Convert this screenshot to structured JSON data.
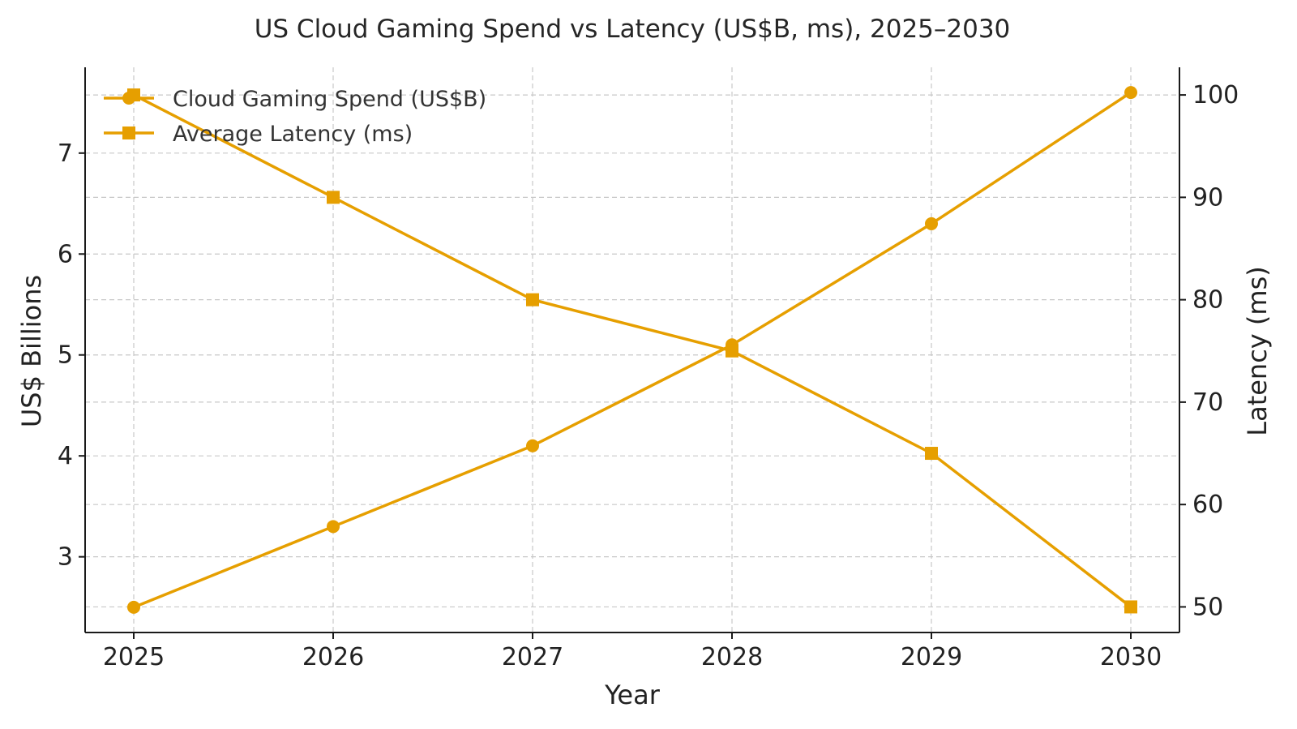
{
  "chart_data": {
    "type": "line",
    "title": "US Cloud Gaming Spend vs Latency (US$B, ms), 2025–2030",
    "xlabel": "Year",
    "ylabel_left": "US$ Billions",
    "ylabel_right": "Latency (ms)",
    "x": [
      "2025",
      "2026",
      "2027",
      "2028",
      "2029",
      "2030"
    ],
    "y_left_ticks": [
      3,
      4,
      5,
      6,
      7
    ],
    "y_left_range": [
      2.25,
      7.85
    ],
    "y_right_ticks": [
      50,
      60,
      70,
      80,
      90,
      100
    ],
    "y_right_range": [
      47.5,
      102.7
    ],
    "grid": true,
    "legend_position": "top-left",
    "series": [
      {
        "name": "Cloud Gaming Spend (US$B)",
        "axis": "left",
        "marker": "circle",
        "color": "#E69F00",
        "values": [
          2.5,
          3.3,
          4.1,
          5.1,
          6.3,
          7.6
        ]
      },
      {
        "name": "Average Latency (ms)",
        "axis": "right",
        "marker": "square",
        "color": "#E69F00",
        "values": [
          100,
          90,
          80,
          75,
          65,
          50
        ]
      }
    ]
  }
}
